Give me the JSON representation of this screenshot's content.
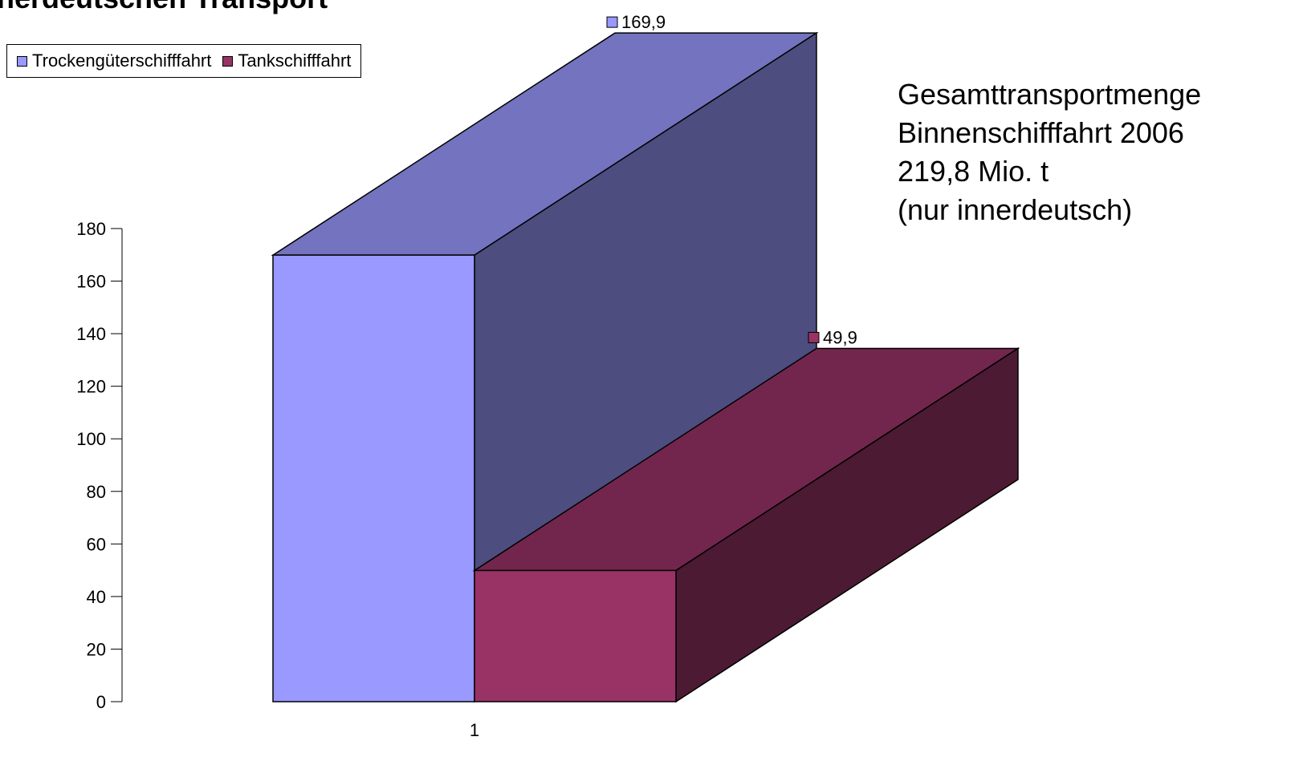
{
  "chart_data": {
    "type": "bar",
    "title": "nerdeutschen Transport",
    "categories": [
      "1"
    ],
    "series": [
      {
        "name": "Trockengüterschifffahrt",
        "values": [
          169.9
        ],
        "value_label": "169,9",
        "color": "#9999ff",
        "top_color": "#7373bf",
        "side_color": "#4d4d7f"
      },
      {
        "name": "Tankschifffahrt",
        "values": [
          49.9
        ],
        "value_label": "49,9",
        "color": "#993366",
        "top_color": "#73264d",
        "side_color": "#4d1a33"
      }
    ],
    "ylim": [
      0,
      180
    ],
    "yticks": [
      "0",
      "20",
      "40",
      "60",
      "80",
      "100",
      "120",
      "140",
      "160",
      "180"
    ],
    "xlabel": "",
    "ylabel": "",
    "legend_position": "top-left",
    "grid": false,
    "style": "3d-column"
  },
  "annotation": {
    "lines": [
      "Gesamttransportmenge",
      "Binnenschifffahrt 2006",
      "219,8 Mio. t",
      "(nur innerdeutsch)"
    ]
  }
}
